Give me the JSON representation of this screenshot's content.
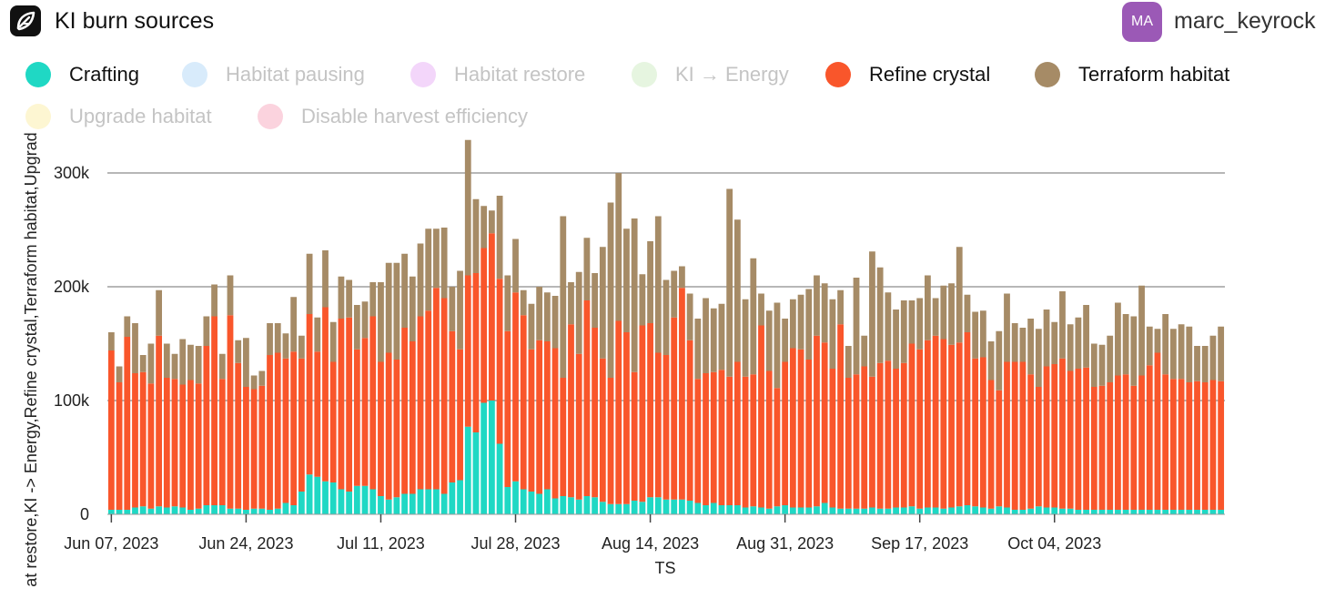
{
  "header": {
    "title": "KI burn sources",
    "avatar_initials": "MA",
    "username": "marc_keyrock"
  },
  "legend": [
    {
      "label": "Crafting",
      "color": "#1fd8c4",
      "enabled": true
    },
    {
      "label": "Habitat pausing",
      "color": "#d8ebfb",
      "enabled": false
    },
    {
      "label": "Habitat restore",
      "color": "#f3d6fa",
      "enabled": false
    },
    {
      "label": "KI → Energy",
      "color": "#e6f5e0",
      "enabled": false
    },
    {
      "label": "Refine crystal",
      "color": "#f9562b",
      "enabled": true
    },
    {
      "label": "Terraform habitat",
      "color": "#a68b66",
      "enabled": true
    },
    {
      "label": "Upgrade habitat",
      "color": "#fdf6d2",
      "enabled": false
    },
    {
      "label": "Disable harvest efficiency",
      "color": "#fbd3de",
      "enabled": false
    }
  ],
  "chart_data": {
    "type": "bar",
    "stacked": true,
    "xlabel": "TS",
    "ylabel": "at restore,KI -> Energy,Refine crystal,Terraform habitat,Upgrad",
    "ylim": [
      0,
      340000
    ],
    "yticks": [
      0,
      100000,
      200000,
      300000
    ],
    "ytick_labels": [
      "0",
      "100k",
      "200k",
      "300k"
    ],
    "grid": true,
    "x_start": "2023-06-07",
    "xtick_labels": [
      "Jun 07, 2023",
      "Jun 24, 2023",
      "Jul 11, 2023",
      "Jul 28, 2023",
      "Aug 14, 2023",
      "Aug 31, 2023",
      "Sep 17, 2023",
      "Oct 04, 2023"
    ],
    "series": [
      {
        "name": "Crafting",
        "color": "#1fd8c4",
        "values": [
          4000,
          4000,
          4000,
          6000,
          7000,
          5000,
          7000,
          6000,
          7000,
          6000,
          4000,
          5000,
          8000,
          8000,
          8000,
          5000,
          5000,
          4000,
          5000,
          5000,
          4000,
          5000,
          10000,
          8000,
          20000,
          35000,
          33000,
          29000,
          28000,
          22000,
          20000,
          25000,
          25000,
          22000,
          16000,
          13000,
          15000,
          18000,
          18000,
          22000,
          22000,
          22000,
          18000,
          28000,
          30000,
          77000,
          72000,
          98000,
          100000,
          62000,
          24000,
          29000,
          22000,
          20000,
          18000,
          22000,
          14000,
          16000,
          15000,
          13000,
          16000,
          15000,
          11000,
          9000,
          9000,
          9000,
          12000,
          11000,
          15000,
          15000,
          13000,
          13000,
          13000,
          12000,
          10000,
          8000,
          10000,
          8000,
          8000,
          8000,
          6000,
          7000,
          6000,
          5000,
          7000,
          8000,
          6000,
          6000,
          6000,
          7000,
          10000,
          6000,
          5000,
          5000,
          5000,
          5000,
          6000,
          5000,
          5000,
          6000,
          6000,
          7000,
          5000,
          6000,
          6000,
          5000,
          6000,
          7000,
          8000,
          7000,
          6000,
          5000,
          7000,
          6000,
          4000,
          4000,
          5000,
          7000,
          6000,
          6000,
          5000,
          5000,
          4000,
          4000,
          4000,
          4000,
          4000,
          4000,
          4000,
          4000,
          4000,
          4000,
          4000,
          4000,
          4000,
          4000,
          4000,
          4000,
          4000,
          4000,
          4000
        ]
      },
      {
        "name": "Refine crystal",
        "color": "#f9562b",
        "values": [
          140000,
          112000,
          152000,
          118000,
          118000,
          110000,
          150000,
          114000,
          112000,
          108000,
          114000,
          110000,
          140000,
          166000,
          111000,
          170000,
          128000,
          108000,
          105000,
          108000,
          136000,
          137000,
          127000,
          135000,
          117000,
          141000,
          110000,
          153000,
          106000,
          150000,
          153000,
          120000,
          130000,
          152000,
          118000,
          129000,
          121000,
          146000,
          134000,
          152000,
          157000,
          177000,
          172000,
          133000,
          115000,
          133000,
          140000,
          136000,
          147000,
          145000,
          137000,
          166000,
          153000,
          125000,
          135000,
          130000,
          132000,
          104000,
          152000,
          128000,
          172000,
          149000,
          126000,
          111000,
          161000,
          151000,
          113000,
          155000,
          153000,
          127000,
          127000,
          160000,
          186000,
          141000,
          109000,
          116000,
          115000,
          119000,
          113000,
          126000,
          115000,
          116000,
          160000,
          121000,
          104000,
          126000,
          140000,
          139000,
          130000,
          150000,
          141000,
          122000,
          162000,
          115000,
          118000,
          125000,
          115000,
          128000,
          130000,
          122000,
          127000,
          143000,
          140000,
          147000,
          151000,
          149000,
          143000,
          144000,
          152000,
          130000,
          132000,
          113000,
          102000,
          128000,
          130000,
          130000,
          118000,
          105000,
          124000,
          126000,
          132000,
          121000,
          124000,
          125000,
          108000,
          109000,
          112000,
          118000,
          119000,
          109000,
          118000,
          127000,
          138000,
          119000,
          115000,
          115000,
          112000,
          113000,
          112000,
          114000,
          113000
        ]
      },
      {
        "name": "Terraform habitat",
        "color": "#a68b66",
        "values": [
          16000,
          14000,
          18000,
          44000,
          15000,
          35000,
          40000,
          30000,
          22000,
          40000,
          31000,
          33000,
          26000,
          28000,
          22000,
          35000,
          20000,
          43000,
          12000,
          13000,
          28000,
          26000,
          22000,
          48000,
          20000,
          53000,
          30000,
          50000,
          35000,
          37000,
          33000,
          39000,
          32000,
          30000,
          70000,
          79000,
          85000,
          65000,
          57000,
          64000,
          72000,
          52000,
          62000,
          39000,
          69000,
          119000,
          65000,
          37000,
          20000,
          73000,
          49000,
          47000,
          22000,
          40000,
          47000,
          43000,
          46000,
          142000,
          37000,
          72000,
          55000,
          48000,
          98000,
          154000,
          130000,
          91000,
          135000,
          45000,
          72000,
          120000,
          66000,
          41000,
          19000,
          41000,
          53000,
          66000,
          56000,
          58000,
          165000,
          125000,
          68000,
          102000,
          28000,
          53000,
          75000,
          38000,
          43000,
          48000,
          62000,
          53000,
          52000,
          61000,
          30000,
          28000,
          85000,
          27000,
          110000,
          84000,
          60000,
          52000,
          55000,
          38000,
          45000,
          57000,
          33000,
          47000,
          54000,
          84000,
          33000,
          41000,
          41000,
          34000,
          52000,
          60000,
          34000,
          30000,
          49000,
          51000,
          50000,
          37000,
          59000,
          41000,
          45000,
          55000,
          38000,
          36000,
          41000,
          64000,
          53000,
          61000,
          79000,
          34000,
          21000,
          53000,
          44000,
          48000,
          49000,
          31000,
          32000,
          39000,
          48000
        ]
      }
    ]
  }
}
